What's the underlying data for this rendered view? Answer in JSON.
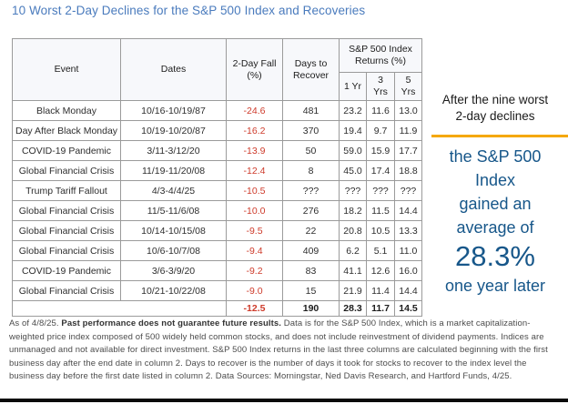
{
  "title": "10 Worst 2-Day Declines for the S&P 500 Index and Recoveries",
  "table": {
    "headers": {
      "event": "Event",
      "dates": "Dates",
      "fall": "2-Day Fall (%)",
      "recover": "Days to Recover",
      "returns_group": "S&P 500 Index Returns (%)",
      "sub": [
        "1 Yr",
        "3 Yrs",
        "5 Yrs"
      ]
    },
    "rows": [
      {
        "event": "Black Monday",
        "dates": "10/16-10/19/87",
        "fall": "-24.6",
        "recover": "481",
        "yr1": "23.2",
        "yr3": "11.6",
        "yr5": "13.0"
      },
      {
        "event": "Day After Black Monday",
        "dates": "10/19-10/20/87",
        "fall": "-16.2",
        "recover": "370",
        "yr1": "19.4",
        "yr3": "9.7",
        "yr5": "11.9"
      },
      {
        "event": "COVID-19 Pandemic",
        "dates": "3/11-3/12/20",
        "fall": "-13.9",
        "recover": "50",
        "yr1": "59.0",
        "yr3": "15.9",
        "yr5": "17.7"
      },
      {
        "event": "Global Financial Crisis",
        "dates": "11/19-11/20/08",
        "fall": "-12.4",
        "recover": "8",
        "yr1": "45.0",
        "yr3": "17.4",
        "yr5": "18.8"
      },
      {
        "event": "Trump Tariff Fallout",
        "dates": "4/3-4/4/25",
        "fall": "-10.5",
        "recover": "???",
        "yr1": "???",
        "yr3": "???",
        "yr5": "???"
      },
      {
        "event": "Global Financial Crisis",
        "dates": "11/5-11/6/08",
        "fall": "-10.0",
        "recover": "276",
        "yr1": "18.2",
        "yr3": "11.5",
        "yr5": "14.4"
      },
      {
        "event": "Global Financial Crisis",
        "dates": "10/14-10/15/08",
        "fall": "-9.5",
        "recover": "22",
        "yr1": "20.8",
        "yr3": "10.5",
        "yr5": "13.3"
      },
      {
        "event": "Global Financial Crisis",
        "dates": "10/6-10/7/08",
        "fall": "-9.4",
        "recover": "409",
        "yr1": "6.2",
        "yr3": "5.1",
        "yr5": "11.0"
      },
      {
        "event": "COVID-19 Pandemic",
        "dates": "3/6-3/9/20",
        "fall": "-9.2",
        "recover": "83",
        "yr1": "41.1",
        "yr3": "12.6",
        "yr5": "16.0"
      },
      {
        "event": "Global Financial Crisis",
        "dates": "10/21-10/22/08",
        "fall": "-9.0",
        "recover": "15",
        "yr1": "21.9",
        "yr3": "11.4",
        "yr5": "14.4"
      }
    ],
    "summary": {
      "label": "",
      "fall": "-12.5",
      "recover": "190",
      "yr1": "28.3",
      "yr3": "11.7",
      "yr5": "14.5"
    }
  },
  "callout": {
    "intro_line1": "After the nine worst",
    "intro_line2": "2-day declines",
    "lines": [
      "the S&P 500",
      "Index",
      "gained an",
      "average of"
    ],
    "big_value": "28.3%",
    "outro": "one year later",
    "accent_color": "#f5a800",
    "text_color": "#17578a"
  },
  "footnote": {
    "prefix": "As of 4/8/25. ",
    "bold": "Past performance does not guarantee future results.",
    "rest": " Data is for the S&P 500 Index, which is a market capitalization-weighted price index composed of 500 widely held common stocks, and does not include reinvestment of dividend payments. Indices are unmanaged and not available for direct investment. S&P 500 Index returns in the last three columns are calculated beginning with the first business day after the end date in column 2. Days to recover is the number of days it took for stocks to recover to the index level the business day before the first date listed in column 2. Data Sources: Morningstar, Ned Davis Research, and Hartford Funds, 4/25."
  },
  "colors": {
    "title_blue": "#4a7bbd",
    "navy": "#17578a",
    "orange": "#f5a800",
    "negative_red": "#ce3b2b",
    "header_bg": "#f7f8fb"
  }
}
